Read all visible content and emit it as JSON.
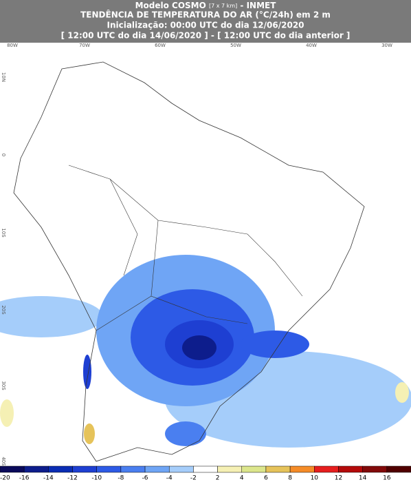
{
  "header": {
    "model": "Modelo COSMO",
    "resolution": "[7 x 7 km]",
    "source": "- INMET",
    "title": "TENDÊNCIA DE TEMPERATURA DO AR (°C/24h) em 2 m",
    "init": "Inicialização: 00:00 UTC do dia 12/06/2020",
    "period": "[ 12:00 UTC do dia 14/06/2020 ] - [ 12:00 UTC do dia anterior ]"
  },
  "map": {
    "lon_labels": [
      "80W",
      "70W",
      "60W",
      "50W",
      "40W",
      "30W"
    ],
    "lat_labels": [
      "10N",
      "0",
      "10S",
      "20S",
      "30S",
      "40S"
    ]
  },
  "legend": {
    "ticks": [
      -20,
      -16,
      -14,
      -12,
      -10,
      -8,
      -6,
      -4,
      -2,
      2,
      4,
      6,
      8,
      10,
      12,
      14,
      16
    ],
    "colors": [
      "#0a0a5a",
      "#0d1d8c",
      "#0a2db4",
      "#1e3fd2",
      "#2d5ae6",
      "#4a7ff0",
      "#6fa5f5",
      "#a5cdfa",
      "#ffffff",
      "#f5f0b4",
      "#dce68c",
      "#e6c35a",
      "#f58c28",
      "#e61e1e",
      "#b40a0a",
      "#820a0a",
      "#500000"
    ]
  }
}
